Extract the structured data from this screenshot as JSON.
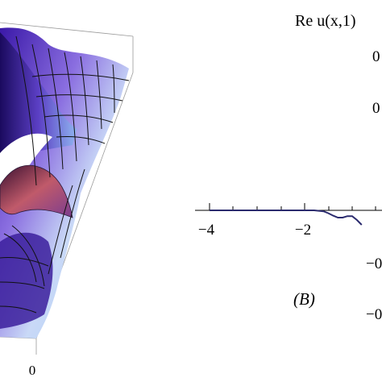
{
  "left_panel": {
    "axis_tick_label": "0"
  },
  "right_panel": {
    "ylabel": "Re u(x,1)",
    "panel_label": "(B)",
    "x_ticks": [
      "−4",
      "−2"
    ],
    "y_tick_fragments": [
      "0",
      "0",
      "−0",
      "−0"
    ],
    "colors": {
      "curve": "#2b2b6e",
      "axis": "#000000"
    }
  },
  "chart_data": {
    "type": "line",
    "xlabel": "",
    "ylabel": "Re u(x,1)",
    "xlim": [
      -4.2,
      0
    ],
    "x_tick_labels": [
      "−4",
      "−2"
    ],
    "series": [
      {
        "x": [
          -4.0,
          -3.5,
          -3.0,
          -2.5,
          -2.0,
          -1.8,
          -1.6,
          -1.5,
          -1.4,
          -1.3,
          -1.2,
          -1.1,
          -1.0,
          -0.9,
          -0.8
        ],
        "y": [
          0.0,
          0.0,
          0.0,
          0.0,
          0.0,
          0.0,
          -0.004,
          -0.012,
          -0.022,
          -0.03,
          -0.03,
          -0.024,
          -0.024,
          -0.04,
          -0.06
        ]
      }
    ]
  }
}
